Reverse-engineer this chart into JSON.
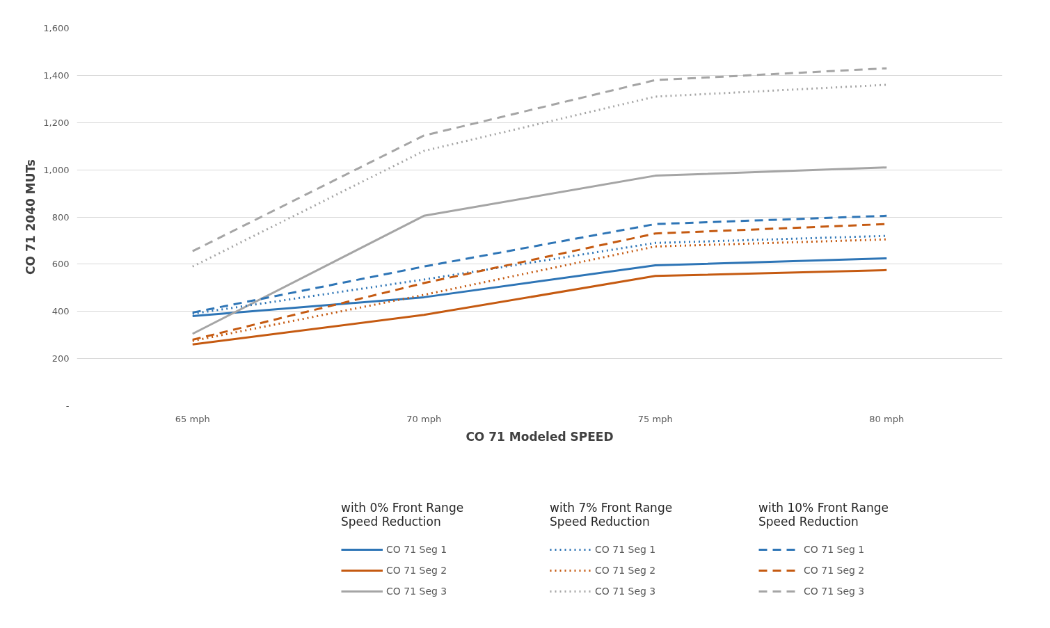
{
  "chart_data": {
    "type": "line",
    "xlabel": "CO 71 Modeled SPEED",
    "ylabel": "CO 71 2040 MUTs",
    "categories": [
      "65 mph",
      "70 mph",
      "75 mph",
      "80 mph"
    ],
    "ylim": [
      0,
      1600
    ],
    "yticks": [
      {
        "value": 0,
        "label": "-"
      },
      {
        "value": 200,
        "label": "200"
      },
      {
        "value": 400,
        "label": "400"
      },
      {
        "value": 600,
        "label": "600"
      },
      {
        "value": 800,
        "label": "800"
      },
      {
        "value": 1000,
        "label": "1,000"
      },
      {
        "value": 1200,
        "label": "1,200"
      },
      {
        "value": 1400,
        "label": "1,400"
      },
      {
        "value": 1600,
        "label": "1,600"
      }
    ],
    "grid": "y",
    "legend": "bottom",
    "marker": "none",
    "annotations": [
      "with 0% Front Range Speed Reduction",
      "with 7% Front Range Speed Reduction",
      "with 10% Front Range Speed Reduction"
    ],
    "series": [
      {
        "name": "CO 71 Seg 1",
        "color": "#2e75b6",
        "line_style": "solid",
        "values": [
          380,
          460,
          595,
          625
        ]
      },
      {
        "name": "CO 71 Seg 2",
        "color": "#c55a11",
        "line_style": "solid",
        "values": [
          260,
          385,
          550,
          575
        ]
      },
      {
        "name": "CO 71 Seg 3",
        "color": "#a5a5a5",
        "line_style": "solid",
        "values": [
          305,
          805,
          975,
          1010
        ]
      },
      {
        "name": "CO 71 Seg 1",
        "color": "#2e75b6",
        "line_style": "dotted",
        "values": [
          390,
          535,
          690,
          720
        ]
      },
      {
        "name": "CO 71 Seg 2",
        "color": "#c55a11",
        "line_style": "dotted",
        "values": [
          275,
          470,
          675,
          705
        ]
      },
      {
        "name": "CO 71 Seg 3",
        "color": "#a5a5a5",
        "line_style": "dotted",
        "values": [
          590,
          1080,
          1310,
          1360
        ]
      },
      {
        "name": "CO 71 Seg 1",
        "color": "#2e75b6",
        "line_style": "dashed",
        "values": [
          395,
          590,
          770,
          805
        ]
      },
      {
        "name": "CO 71 Seg 2",
        "color": "#c55a11",
        "line_style": "dashed",
        "values": [
          280,
          520,
          730,
          770
        ]
      },
      {
        "name": "CO 71 Seg 3",
        "color": "#a5a5a5",
        "line_style": "dashed",
        "values": [
          655,
          1145,
          1380,
          1430
        ]
      }
    ]
  }
}
